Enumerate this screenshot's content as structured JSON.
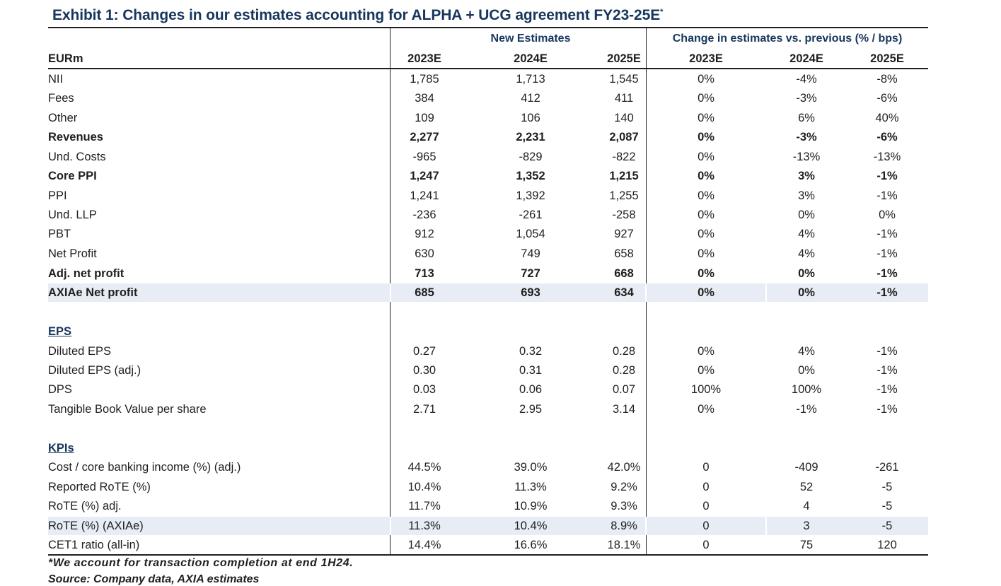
{
  "exhibit": {
    "title": "Exhibit 1: Changes in our estimates accounting for ALPHA + UCG agreement FY23-25E",
    "title_marker": "*"
  },
  "groups": {
    "new_estimates": "New Estimates",
    "change": "Change in estimates vs. previous (% / bps)"
  },
  "columns": {
    "label": "EURm",
    "headers": [
      "2023E",
      "2024E",
      "2025E",
      "2023E",
      "2024E",
      "2025E"
    ]
  },
  "rows": [
    {
      "label": "NII",
      "values": [
        "1,785",
        "1,713",
        "1,545",
        "0%",
        "-4%",
        "-8%"
      ]
    },
    {
      "label": "Fees",
      "values": [
        "384",
        "412",
        "411",
        "0%",
        "-3%",
        "-6%"
      ]
    },
    {
      "label": "Other",
      "values": [
        "109",
        "106",
        "140",
        "0%",
        "6%",
        "40%"
      ]
    },
    {
      "label": "Revenues",
      "values": [
        "2,277",
        "2,231",
        "2,087",
        "0%",
        "-3%",
        "-6%"
      ]
    },
    {
      "label": "Und. Costs",
      "values": [
        "-965",
        "-829",
        "-822",
        "0%",
        "-13%",
        "-13%"
      ]
    },
    {
      "label": "Core PPI",
      "values": [
        "1,247",
        "1,352",
        "1,215",
        "0%",
        "3%",
        "-1%"
      ]
    },
    {
      "label": "PPI",
      "values": [
        "1,241",
        "1,392",
        "1,255",
        "0%",
        "3%",
        "-1%"
      ]
    },
    {
      "label": "Und. LLP",
      "values": [
        "-236",
        "-261",
        "-258",
        "0%",
        "0%",
        "0%"
      ]
    },
    {
      "label": "PBT",
      "values": [
        "912",
        "1,054",
        "927",
        "0%",
        "4%",
        "-1%"
      ]
    },
    {
      "label": "Net Profit",
      "values": [
        "630",
        "749",
        "658",
        "0%",
        "4%",
        "-1%"
      ]
    },
    {
      "label": "Adj. net profit",
      "values": [
        "713",
        "727",
        "668",
        "0%",
        "0%",
        "-1%"
      ]
    },
    {
      "label": "AXIAe Net profit",
      "values": [
        "685",
        "693",
        "634",
        "0%",
        "0%",
        "-1%"
      ]
    },
    {
      "section": "EPS"
    },
    {
      "label": "Diluted EPS",
      "values": [
        "0.27",
        "0.32",
        "0.28",
        "0%",
        "4%",
        "-1%"
      ]
    },
    {
      "label": "Diluted EPS (adj.)",
      "values": [
        "0.30",
        "0.31",
        "0.28",
        "0%",
        "0%",
        "-1%"
      ]
    },
    {
      "label": "DPS",
      "values": [
        "0.03",
        "0.06",
        "0.07",
        "100%",
        "100%",
        "-1%"
      ]
    },
    {
      "label": "Tangible Book Value per share",
      "values": [
        "2.71",
        "2.95",
        "3.14",
        "0%",
        "-1%",
        "-1%"
      ]
    },
    {
      "section": "KPIs"
    },
    {
      "label": "Cost / core banking income (%) (adj.)",
      "values": [
        "44.5%",
        "39.0%",
        "42.0%",
        "0",
        "-409",
        "-261"
      ]
    },
    {
      "label": "Reported RoTE (%)",
      "values": [
        "10.4%",
        "11.3%",
        "9.2%",
        "0",
        "52",
        "-5"
      ]
    },
    {
      "label": "RoTE (%) adj.",
      "values": [
        "11.7%",
        "10.9%",
        "9.3%",
        "0",
        "4",
        "-5"
      ]
    },
    {
      "label": "RoTE (%) (AXIAe)",
      "values": [
        "11.3%",
        "10.4%",
        "8.9%",
        "0",
        "3",
        "-5"
      ]
    },
    {
      "label": "CET1 ratio (all-in)",
      "values": [
        "14.4%",
        "16.6%",
        "18.1%",
        "0",
        "75",
        "120"
      ]
    }
  ],
  "footnotes": {
    "note": "*We account for transaction completion at end 1H24.",
    "source": "Source: Company data, AXIA estimates"
  }
}
